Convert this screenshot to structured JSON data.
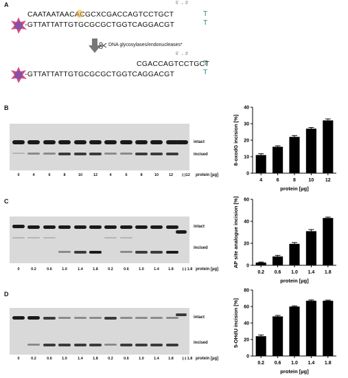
{
  "panelA": {
    "letter": "A",
    "top_strand": "CAATAATAACACGCXCGACCAGTCCTGCT",
    "direction_top": "5' → 3'",
    "bottom_strand": "-GTTATTATTGTGCGCGCTGGTCAGGACGT",
    "hairpin_top": "T",
    "hairpin_bot": "T",
    "arrow_label": "DNA glycosylases/endonucleases*",
    "direction_mid": "5' → 3'",
    "product_strand": "CGACCAGTCCTGCT",
    "bottom_strand2": "-GTTATTATTGTGCGCGCTGGTCAGGACGT"
  },
  "colors": {
    "teal": "#2a8a86",
    "bar": "#000000",
    "gel_bg": "#d9d9d9",
    "lesion": "#f2b33d",
    "fluor": "#8a4fa8"
  },
  "panelB": {
    "letter": "B",
    "lanes": [
      "0",
      "4",
      "6",
      "8",
      "10",
      "12",
      "4",
      "6",
      "8",
      "10",
      "12",
      "(-)12"
    ],
    "intact_label": "intact",
    "incised_label": "incised",
    "protein_label": "protein [µg]"
  },
  "panelC": {
    "letter": "C",
    "lanes": [
      "0",
      "0.2",
      "0.6",
      "1.0",
      "1.4",
      "1.8",
      "0.2",
      "0.6",
      "1.0",
      "1.4",
      "1.8",
      "(-) 1.8"
    ],
    "intact_label": "intact",
    "incised_label": "incised",
    "protein_label": "protein [µg]"
  },
  "panelD": {
    "letter": "D",
    "lanes": [
      "0",
      "0.2",
      "0.6",
      "1.0",
      "1.4",
      "1.8",
      "0.2",
      "0.6",
      "1.0",
      "1.4",
      "1.8",
      "(-) 1.8"
    ],
    "intact_label": "intact",
    "incised_label": "incised",
    "protein_label": "protein [µg]"
  },
  "chart_data": [
    {
      "type": "bar",
      "categories": [
        "4",
        "6",
        "8",
        "10",
        "12"
      ],
      "values": [
        11,
        16,
        22,
        27,
        32
      ],
      "errors": [
        0.8,
        0.6,
        0.8,
        0.7,
        0.9
      ],
      "xlabel": "protein [µg]",
      "ylabel": "8-oxodG incision [%]",
      "ylim": [
        0,
        40
      ],
      "yticks": [
        "0",
        "10",
        "20",
        "30",
        "40"
      ]
    },
    {
      "type": "bar",
      "categories": [
        "0.2",
        "0.6",
        "1.0",
        "1.4",
        "1.8"
      ],
      "values": [
        2.5,
        8,
        19.5,
        31,
        43
      ],
      "errors": [
        0.5,
        1.0,
        1.2,
        1.5,
        0.8
      ],
      "xlabel": "protein [µg]",
      "ylabel": "AP site analogue incision [%]",
      "ylim": [
        0,
        60
      ],
      "yticks": [
        "0",
        "20",
        "40",
        "60"
      ]
    },
    {
      "type": "bar",
      "categories": [
        "0.2",
        "0.6",
        "1.0",
        "1.4",
        "1.8"
      ],
      "values": [
        24,
        48,
        60,
        67,
        67
      ],
      "errors": [
        1.5,
        1.2,
        0.8,
        1.0,
        0.7
      ],
      "xlabel": "protein [µg]",
      "ylabel": "5-OHdU incision [%]",
      "ylim": [
        0,
        80
      ],
      "yticks": [
        "0",
        "20",
        "40",
        "60",
        "80"
      ]
    }
  ]
}
